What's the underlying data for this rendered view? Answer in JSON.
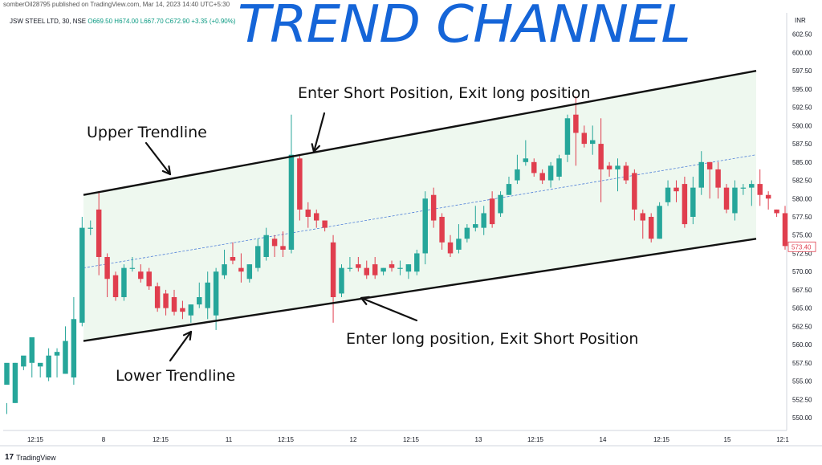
{
  "header": {
    "published": "somberOil28795 published on TradingView.com, Mar 14, 2023 14:40 UTC+5:30",
    "symbol": "JSW STEEL LTD, 30, NSE",
    "ohlc": "O669.50 H674.00 L667.70 C672.90 +3.35 (+0.90%)",
    "currency": "INR"
  },
  "title": "TREND CHANNEL",
  "annotations": {
    "short": "Enter Short Position, Exit long position",
    "upper": "Upper Trendline",
    "lower": "Lower Trendline",
    "long": "Enter long position, Exit Short Position"
  },
  "footer": {
    "brand": "TradingView"
  },
  "colors": {
    "up": "#26a69a",
    "down": "#e03e4e",
    "channel_fill": "#e8f5e9",
    "midline": "#4f7fd8",
    "title": "#1565d8"
  },
  "chart_data": {
    "type": "candlestick",
    "ylim": [
      550,
      605
    ],
    "y_ticks": [
      "550.00",
      "552.50",
      "555.00",
      "557.50",
      "560.00",
      "562.50",
      "565.00",
      "567.50",
      "570.00",
      "572.50",
      "575.00",
      "577.50",
      "580.00",
      "582.50",
      "585.00",
      "587.50",
      "590.00",
      "592.50",
      "595.00",
      "597.50",
      "600.00",
      "602.50"
    ],
    "x_ticks": [
      "12:15",
      "8",
      "12:15",
      "11",
      "12:15",
      "12",
      "12:15",
      "13",
      "12:15",
      "14",
      "12:15",
      "15",
      "12:1"
    ],
    "last_price_label": "573.40",
    "candles": [
      [
        554.5,
        557.5,
        552.0,
        550.5
      ],
      [
        552.0,
        557.5,
        557.5,
        552.0
      ],
      [
        557.0,
        558.5,
        557.0,
        556.5
      ],
      [
        557.5,
        561.0,
        557.5,
        555.5
      ],
      [
        557.0,
        557.5,
        557.0,
        555.5
      ],
      [
        555.5,
        558.5,
        559.5,
        555.0
      ],
      [
        558.5,
        559.0,
        559.5,
        555.5
      ],
      [
        556.0,
        560.5,
        562.5,
        556.0
      ],
      [
        555.5,
        563.5,
        566.5,
        554.5
      ],
      [
        563.0,
        576.0,
        577.5,
        562.5
      ],
      [
        576.0,
        576.0,
        577.0,
        575.0
      ],
      [
        578.5,
        572.0,
        581.0,
        569.5
      ],
      [
        572.0,
        569.0,
        572.5,
        566.5
      ],
      [
        569.5,
        566.5,
        570.0,
        566.0
      ],
      [
        566.5,
        570.5,
        571.0,
        566.0
      ],
      [
        570.5,
        570.5,
        572.0,
        570.0
      ],
      [
        570.0,
        569.0,
        571.0,
        568.5
      ],
      [
        570.0,
        568.0,
        570.5,
        567.5
      ],
      [
        568.0,
        565.0,
        568.5,
        564.5
      ],
      [
        567.0,
        565.0,
        567.5,
        564.0
      ],
      [
        566.5,
        564.5,
        567.5,
        564.0
      ],
      [
        565.0,
        564.5,
        566.0,
        563.5
      ],
      [
        564.0,
        565.5,
        565.5,
        563.0
      ],
      [
        565.5,
        566.5,
        568.5,
        565.0
      ],
      [
        565.0,
        568.5,
        570.0,
        563.5
      ],
      [
        564.0,
        570.0,
        570.5,
        562.0
      ],
      [
        569.5,
        571.0,
        573.0,
        569.0
      ],
      [
        572.0,
        571.5,
        574.0,
        571.0
      ],
      [
        570.5,
        570.0,
        572.5,
        568.5
      ],
      [
        569.0,
        571.0,
        571.0,
        568.5
      ],
      [
        570.5,
        573.5,
        574.5,
        570.0
      ],
      [
        572.0,
        575.0,
        576.0,
        571.5
      ],
      [
        574.5,
        573.5,
        575.0,
        572.0
      ],
      [
        573.5,
        573.0,
        575.5,
        572.0
      ],
      [
        573.0,
        586.0,
        591.5,
        572.5
      ],
      [
        585.5,
        578.5,
        586.0,
        577.0
      ],
      [
        578.5,
        577.5,
        579.5,
        576.0
      ],
      [
        578.0,
        577.0,
        578.5,
        576.0
      ],
      [
        577.0,
        576.0,
        577.0,
        575.5
      ],
      [
        574.0,
        566.5,
        575.0,
        563.0
      ],
      [
        567.0,
        570.5,
        571.0,
        566.5
      ],
      [
        570.5,
        570.5,
        572.0,
        570.0
      ],
      [
        571.0,
        570.5,
        572.0,
        570.0
      ],
      [
        570.5,
        569.5,
        571.5,
        569.0
      ],
      [
        571.0,
        569.5,
        572.0,
        569.0
      ],
      [
        570.0,
        570.5,
        570.5,
        569.5
      ],
      [
        571.0,
        570.5,
        571.5,
        570.0
      ],
      [
        570.5,
        570.5,
        571.5,
        569.5
      ],
      [
        570.0,
        571.0,
        571.0,
        569.0
      ],
      [
        570.0,
        572.5,
        573.0,
        569.5
      ],
      [
        572.5,
        580.0,
        581.0,
        571.0
      ],
      [
        580.5,
        577.0,
        581.5,
        576.0
      ],
      [
        577.5,
        574.0,
        578.0,
        573.0
      ],
      [
        574.0,
        572.5,
        575.0,
        572.0
      ],
      [
        573.0,
        574.5,
        576.5,
        572.5
      ],
      [
        574.5,
        576.0,
        576.5,
        574.0
      ],
      [
        576.0,
        576.5,
        579.0,
        575.5
      ],
      [
        576.0,
        578.0,
        579.0,
        575.0
      ],
      [
        580.0,
        576.5,
        581.0,
        576.0
      ],
      [
        578.0,
        580.5,
        581.0,
        577.5
      ],
      [
        580.5,
        582.0,
        583.0,
        580.5
      ],
      [
        582.5,
        584.0,
        586.0,
        582.0
      ],
      [
        585.0,
        585.5,
        588.0,
        584.5
      ],
      [
        585.0,
        583.5,
        585.5,
        583.0
      ],
      [
        583.5,
        582.5,
        584.0,
        582.0
      ],
      [
        582.5,
        584.5,
        585.0,
        581.5
      ],
      [
        583.0,
        585.5,
        586.0,
        582.5
      ],
      [
        586.0,
        591.0,
        591.5,
        585.0
      ],
      [
        591.5,
        589.0,
        594.0,
        584.5
      ],
      [
        589.0,
        587.5,
        590.0,
        587.0
      ],
      [
        587.5,
        588.0,
        590.0,
        586.0
      ],
      [
        587.5,
        584.0,
        591.0,
        579.5
      ],
      [
        584.5,
        584.0,
        585.0,
        583.0
      ],
      [
        584.0,
        584.5,
        585.5,
        581.0
      ],
      [
        584.5,
        582.5,
        585.0,
        582.0
      ],
      [
        583.5,
        578.5,
        584.0,
        577.0
      ],
      [
        578.0,
        577.0,
        578.5,
        574.5
      ],
      [
        577.5,
        574.5,
        578.0,
        574.0
      ],
      [
        574.5,
        579.0,
        579.5,
        574.5
      ],
      [
        579.5,
        581.5,
        582.5,
        579.0
      ],
      [
        581.5,
        581.0,
        582.5,
        579.5
      ],
      [
        582.0,
        576.5,
        583.0,
        576.0
      ],
      [
        577.5,
        581.5,
        583.0,
        576.5
      ],
      [
        581.5,
        585.0,
        586.5,
        580.5
      ],
      [
        585.0,
        584.0,
        585.0,
        580.0
      ],
      [
        584.0,
        581.5,
        585.0,
        580.0
      ],
      [
        581.5,
        578.5,
        582.0,
        578.0
      ],
      [
        578.0,
        581.5,
        582.5,
        577.0
      ],
      [
        581.5,
        581.5,
        582.0,
        580.5
      ],
      [
        581.5,
        582.0,
        582.5,
        579.0
      ],
      [
        582.0,
        580.5,
        584.0,
        579.0
      ],
      [
        580.5,
        580.0,
        581.0,
        578.5
      ],
      [
        578.5,
        578.0,
        578.5,
        577.5
      ],
      [
        578.0,
        573.5,
        579.0,
        573.0
      ]
    ],
    "channel": {
      "upper_start": 580.5,
      "upper_end": 597.5,
      "lower_start": 560.5,
      "lower_end": 574.5
    }
  }
}
